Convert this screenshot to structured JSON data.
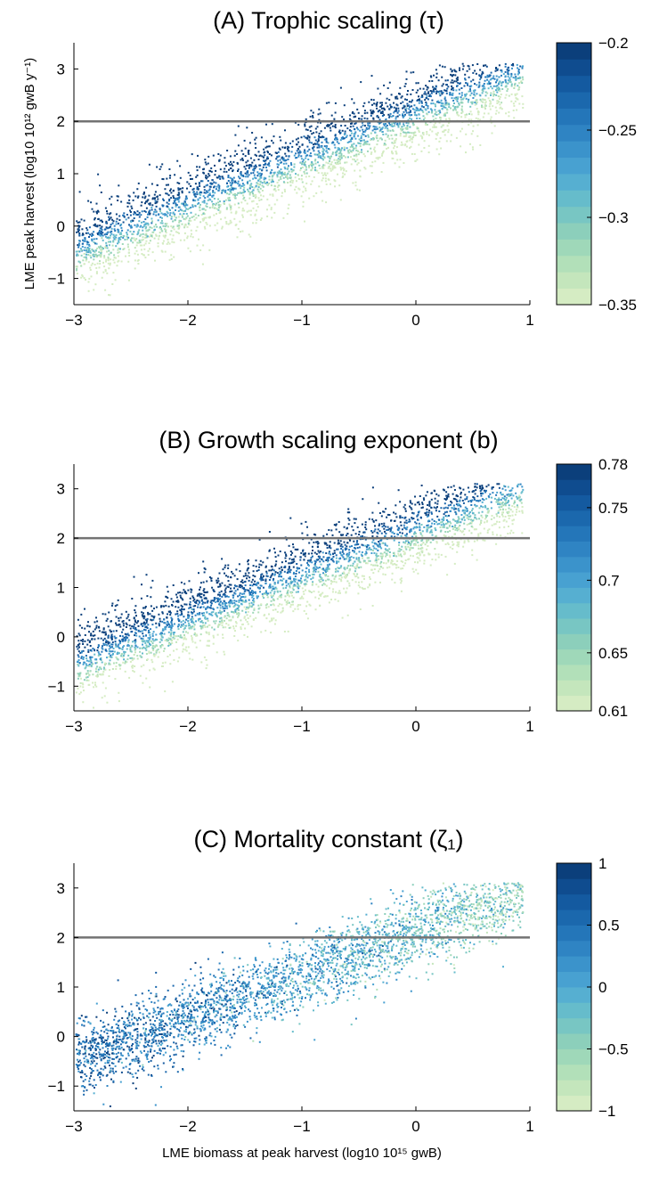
{
  "chart_data": [
    {
      "type": "scatter",
      "title": "(A) Trophic scaling (τ)",
      "xlim": [
        -3,
        1
      ],
      "ylim": [
        -1.5,
        3.5
      ],
      "xticks": [
        "−3",
        "−2",
        "−1",
        "0",
        "1"
      ],
      "yticks": [
        "−1",
        "0",
        "1",
        "2",
        "3"
      ],
      "xlabel": "",
      "ylabel": "LME peak harvest (log10 10¹² gwB y⁻¹)",
      "reference_line_y": 2,
      "colorbar": {
        "min": -0.35,
        "max": -0.2,
        "ticks": [
          "−0.2",
          "−0.25",
          "−0.3",
          "−0.35"
        ],
        "tick_values": [
          -0.2,
          -0.25,
          -0.3,
          -0.35
        ]
      },
      "trend": "color increases with y residual (darker points above the cloud center)",
      "points_approx": {
        "x_range": [
          -3,
          1
        ],
        "y_at_x_minus3": -0.7,
        "y_at_x_1": 2.8,
        "count_estimate": 6000
      }
    },
    {
      "type": "scatter",
      "title": "(B) Growth scaling exponent (b)",
      "xlim": [
        -3,
        1
      ],
      "ylim": [
        -1.5,
        3.5
      ],
      "xticks": [
        "−3",
        "−2",
        "−1",
        "0",
        "1"
      ],
      "yticks": [
        "−1",
        "0",
        "1",
        "2",
        "3"
      ],
      "xlabel": "",
      "ylabel": "",
      "reference_line_y": 2,
      "colorbar": {
        "min": 0.61,
        "max": 0.78,
        "ticks": [
          "0.78",
          "0.75",
          "0.7",
          "0.65",
          "0.61"
        ],
        "tick_values": [
          0.78,
          0.75,
          0.7,
          0.65,
          0.61
        ]
      },
      "trend": "color decreases with x residual (darker toward upper-left of cloud)",
      "points_approx": {
        "x_range": [
          -3,
          1
        ],
        "y_at_x_minus3": -0.7,
        "y_at_x_1": 2.8,
        "count_estimate": 6000
      }
    },
    {
      "type": "scatter",
      "title": "(C) Mortality constant (ζ₁)",
      "xlim": [
        -3,
        1
      ],
      "ylim": [
        -1.5,
        3.5
      ],
      "xticks": [
        "−3",
        "−2",
        "−1",
        "0",
        "1"
      ],
      "yticks": [
        "−1",
        "0",
        "1",
        "2",
        "3"
      ],
      "xlabel": "LME biomass at peak harvest (log10 10¹⁵ gwB)",
      "ylabel": "",
      "reference_line_y": 2,
      "colorbar": {
        "min": -1,
        "max": 1,
        "ticks": [
          "1",
          "0.5",
          "0",
          "−0.5",
          "−1"
        ],
        "tick_values": [
          1,
          0.5,
          0,
          -0.5,
          -1
        ]
      },
      "trend": "color decreases with x (darker toward low x)",
      "points_approx": {
        "x_range": [
          -3,
          1
        ],
        "y_at_x_minus3": -0.7,
        "y_at_x_1": 2.8,
        "count_estimate": 6000
      }
    }
  ],
  "colors": {
    "colormap": [
      "#d5ecc3",
      "#c4e6bc",
      "#b2e0b9",
      "#9fd8b9",
      "#8ccfbb",
      "#78c6c3",
      "#66bccb",
      "#56afd1",
      "#48a1d1",
      "#3b93cb",
      "#2f84c3",
      "#2476b9",
      "#1b68ad",
      "#145aa0",
      "#0f4c8f",
      "#0b3f7b"
    ],
    "reference_line": "#737373",
    "axis": "#000000"
  }
}
